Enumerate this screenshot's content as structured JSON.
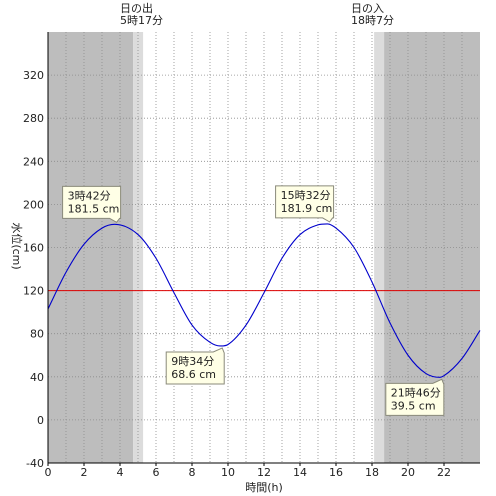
{
  "chart_data": {
    "type": "line",
    "xlabel": "時間(h)",
    "ylabel": "水位(cm)",
    "xlim": [
      0,
      24
    ],
    "ylim": [
      -40,
      360
    ],
    "x_ticks": [
      0,
      2,
      4,
      6,
      8,
      10,
      12,
      14,
      16,
      18,
      20,
      22
    ],
    "y_ticks": [
      -40,
      0,
      40,
      80,
      120,
      160,
      200,
      240,
      280,
      320
    ],
    "grid": true,
    "reference_line": {
      "y": 120,
      "color": "#dd0000"
    },
    "sunrise": {
      "label": "日の出",
      "time_label": "5時17分",
      "hour": 5.283
    },
    "sunset": {
      "label": "日の入",
      "time_label": "18時7分",
      "hour": 18.117
    },
    "extrema": [
      {
        "time_label": "3時42分",
        "value_label": "181.5 cm",
        "hour": 3.7,
        "value": 181.5
      },
      {
        "time_label": "9時34分",
        "value_label": "68.6 cm",
        "hour": 9.567,
        "value": 68.6
      },
      {
        "time_label": "15時32分",
        "value_label": "181.9 cm",
        "hour": 15.533,
        "value": 181.9
      },
      {
        "time_label": "21時46分",
        "value_label": "39.5 cm",
        "hour": 21.767,
        "value": 39.5
      }
    ],
    "series": [
      {
        "color": "#0000cc",
        "x": [
          0,
          1,
          2,
          3,
          3.7,
          5,
          6,
          7,
          8,
          9,
          9.567,
          10,
          11,
          12,
          13,
          14,
          15,
          15.533,
          16,
          17,
          18,
          19,
          20,
          21,
          21.767,
          22,
          23,
          24
        ],
        "y": [
          103,
          137,
          163,
          178,
          181.5,
          172,
          150,
          118,
          88,
          72,
          68.6,
          70,
          88,
          118,
          150,
          172,
          181,
          181.9,
          178,
          160,
          128,
          90,
          60,
          43,
          39.5,
          41,
          57,
          83
        ]
      }
    ]
  }
}
